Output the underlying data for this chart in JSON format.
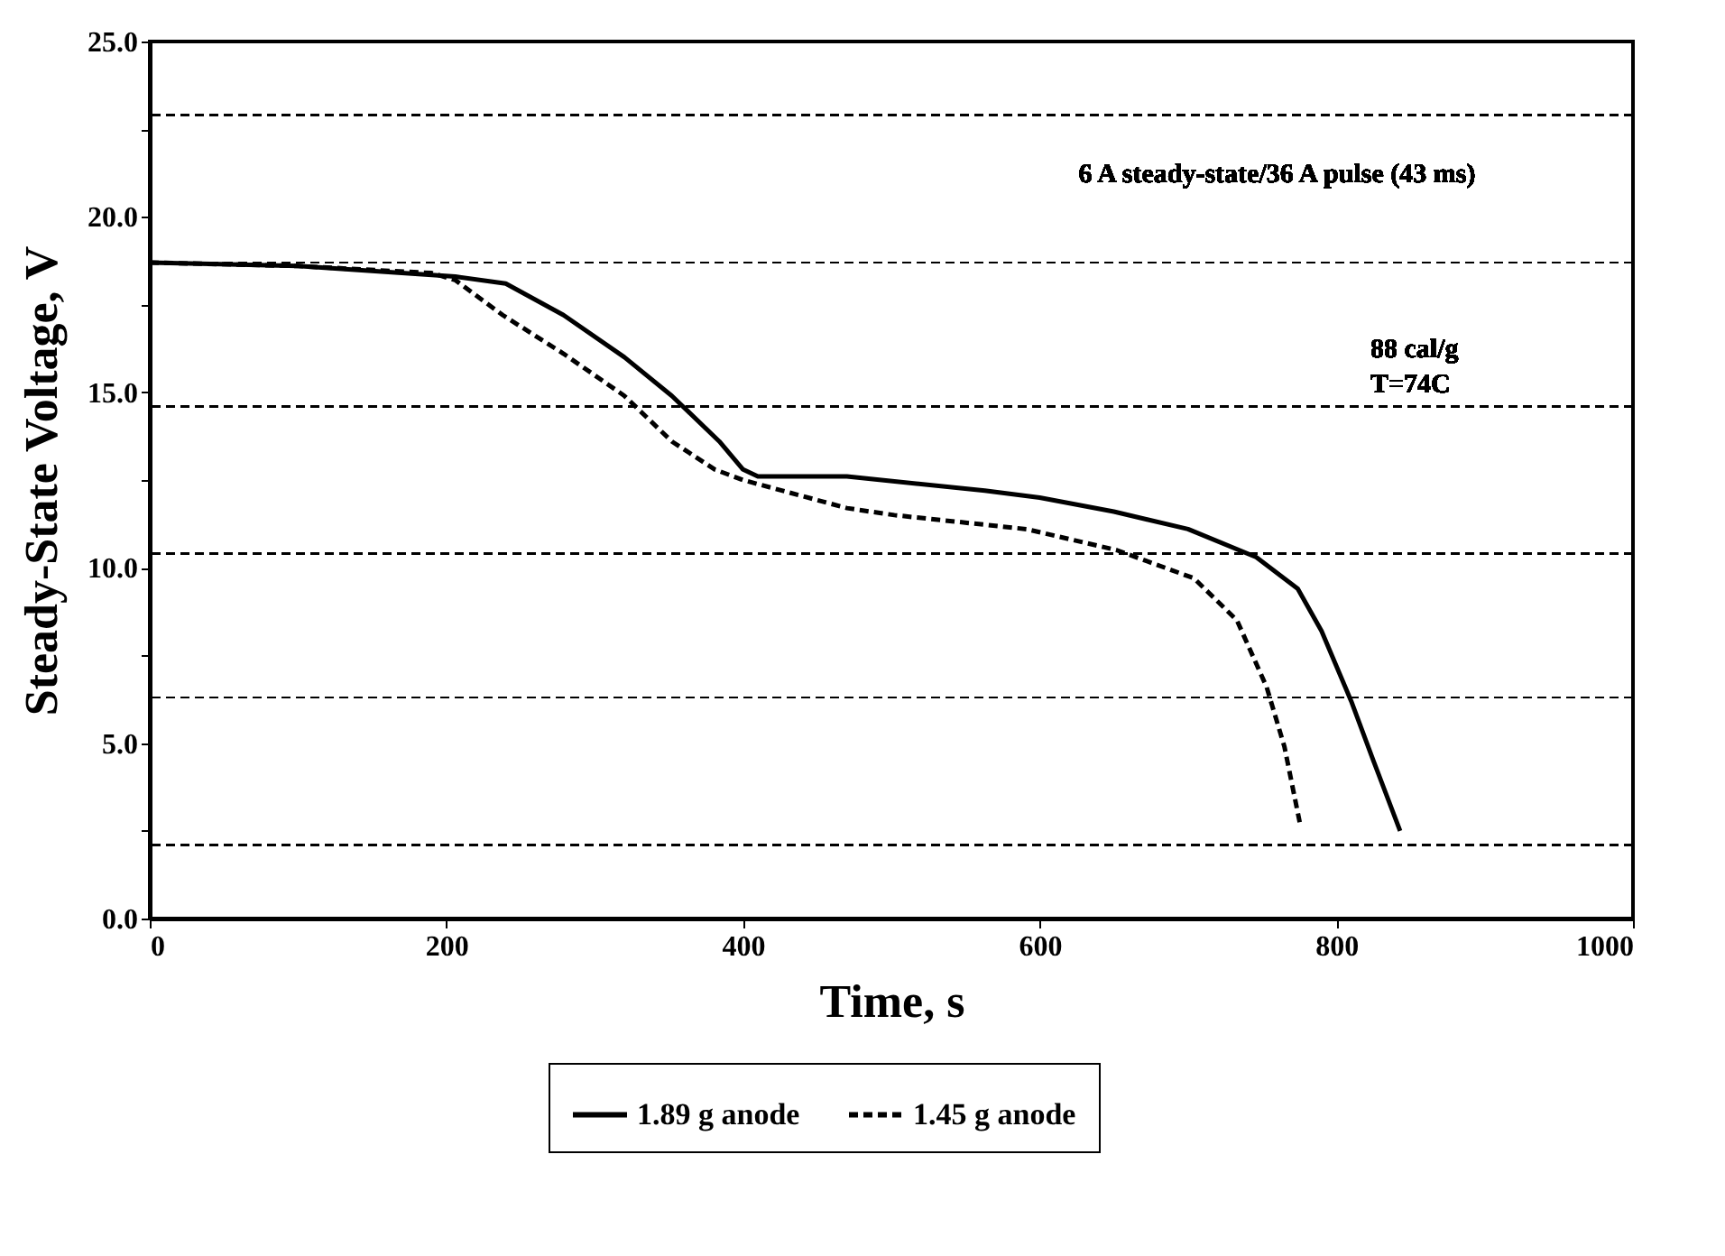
{
  "chart_data": {
    "type": "line",
    "xlabel": "Time, s",
    "ylabel": "Steady-State Voltage, V",
    "xlim": [
      0,
      1000
    ],
    "xticks": [
      0,
      200,
      400,
      600,
      800,
      1000
    ],
    "ylim": [
      0,
      25
    ],
    "yticks": [
      {
        "value": 0,
        "label": "0.0"
      },
      {
        "value": 2.5,
        "label": null
      },
      {
        "value": 5,
        "label": "5.0"
      },
      {
        "value": 7.5,
        "label": null
      },
      {
        "value": 10,
        "label": "10.0"
      },
      {
        "value": 12.5,
        "label": null
      },
      {
        "value": 15,
        "label": "15.0"
      },
      {
        "value": 17.5,
        "label": null
      },
      {
        "value": 20,
        "label": "20.0"
      },
      {
        "value": 22.5,
        "label": null
      },
      {
        "value": 25,
        "label": "25.0"
      }
    ],
    "grid": false,
    "legend": "bottom",
    "marker": "none",
    "annotations": [
      "6 A steady-state/36 A pulse (43 ms)",
      "88 cal/g",
      "T=74C"
    ],
    "ref_lines": [
      {
        "axis": "y",
        "value": 22.9,
        "line_style": "dashed",
        "color": "#000000"
      },
      {
        "axis": "y",
        "value": 18.7,
        "line_style": "dashed",
        "color": "#000000"
      },
      {
        "axis": "y",
        "value": 14.6,
        "line_style": "dashed",
        "color": "#000000"
      },
      {
        "axis": "y",
        "value": 10.4,
        "line_style": "dashed",
        "color": "#000000"
      },
      {
        "axis": "y",
        "value": 6.3,
        "line_style": "dashed",
        "color": "#000000"
      },
      {
        "axis": "y",
        "value": 2.1,
        "line_style": "dashed",
        "color": "#000000"
      }
    ],
    "series": [
      {
        "name": "1.89 g anode",
        "color": "#000000",
        "line_style": "solid",
        "x": [
          0,
          100,
          206,
          240,
          279,
          320,
          352,
          384,
          400,
          410,
          470,
          563,
          600,
          650,
          700,
          746,
          774,
          790,
          810,
          825,
          843
        ],
        "values": [
          18.7,
          18.6,
          18.3,
          18.1,
          17.2,
          16.0,
          14.9,
          13.6,
          12.8,
          12.6,
          12.6,
          12.2,
          12.0,
          11.6,
          11.1,
          10.3,
          9.4,
          8.2,
          6.2,
          4.5,
          2.5
        ]
      },
      {
        "name": "1.45 g anode",
        "color": "#000000",
        "line_style": "dashed",
        "x": [
          0,
          100,
          190,
          206,
          238,
          279,
          320,
          352,
          381,
          400,
          470,
          502,
          591,
          652,
          704,
          733,
          753,
          765,
          776
        ],
        "values": [
          18.7,
          18.6,
          18.4,
          18.2,
          17.2,
          16.1,
          14.9,
          13.6,
          12.8,
          12.5,
          11.7,
          11.5,
          11.1,
          10.5,
          9.7,
          8.5,
          6.6,
          4.9,
          2.6
        ]
      }
    ]
  }
}
